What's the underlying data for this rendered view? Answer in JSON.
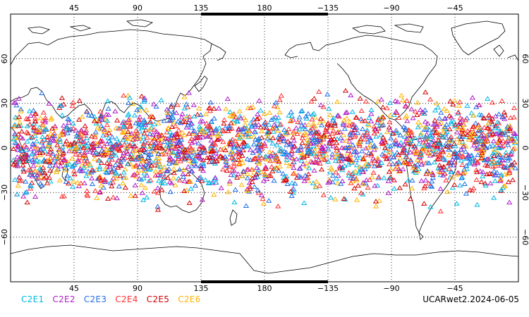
{
  "map": {
    "projection": "cylindrical-equidistant",
    "center_longitude": 180,
    "lat_range": [
      -90,
      90
    ],
    "lon_ticks": [
      "45",
      "90",
      "135",
      "180",
      "−135",
      "−90",
      "−45"
    ],
    "lat_ticks": [
      "60",
      "30",
      "0",
      "−30",
      "−60"
    ],
    "grid": "dotted",
    "land_style": "black coastline outline only",
    "observation_band_lat": [
      -45,
      45
    ],
    "marker": "hollow triangle"
  },
  "legend": [
    {
      "label": "C2E1",
      "color": "#00b8e6"
    },
    {
      "label": "C2E2",
      "color": "#b01ec8"
    },
    {
      "label": "C2E3",
      "color": "#1e6ee6"
    },
    {
      "label": "C2E4",
      "color": "#ff3030"
    },
    {
      "label": "C2E5",
      "color": "#d40000"
    },
    {
      "label": "C2E6",
      "color": "#ffb400"
    }
  ],
  "stamp": "UCARwet2.2024-06-05"
}
